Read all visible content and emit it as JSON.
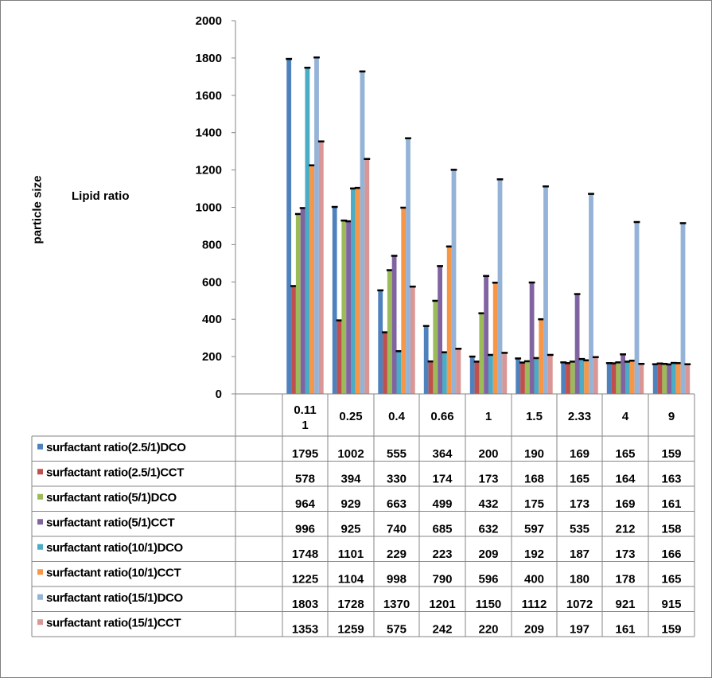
{
  "chart_data": {
    "type": "bar",
    "title": "",
    "xlabel": "Lipid ratio",
    "ylabel": "particle size",
    "ylim": [
      0,
      2000
    ],
    "yticks": [
      0,
      200,
      400,
      600,
      800,
      1000,
      1200,
      1400,
      1600,
      1800,
      2000
    ],
    "categories": [
      "0.11\n1",
      "0.25",
      "0.4",
      "0.66",
      "1",
      "1.5",
      "2.33",
      "4",
      "9"
    ],
    "error_bars": true,
    "legend": "data table below chart",
    "series": [
      {
        "name": "surfactant ratio(2.5/1)DCO",
        "color": "#4f81bd",
        "values": [
          1795,
          1002,
          555,
          364,
          200,
          190,
          169,
          165,
          159
        ]
      },
      {
        "name": "surfactant ratio(2.5/1)CCT",
        "color": "#c0504d",
        "values": [
          578,
          394,
          330,
          174,
          173,
          168,
          165,
          164,
          163
        ]
      },
      {
        "name": "surfactant ratio(5/1)DCO",
        "color": "#9bbb59",
        "values": [
          964,
          929,
          663,
          499,
          432,
          175,
          173,
          169,
          161
        ]
      },
      {
        "name": "surfactant ratio(5/1)CCT",
        "color": "#8064a2",
        "values": [
          996,
          925,
          740,
          685,
          632,
          597,
          535,
          212,
          158
        ]
      },
      {
        "name": "surfactant ratio(10/1)DCO",
        "color": "#4bacc6",
        "values": [
          1748,
          1101,
          229,
          223,
          209,
          192,
          187,
          173,
          166
        ]
      },
      {
        "name": "surfactant ratio(10/1)CCT",
        "color": "#f79646",
        "values": [
          1225,
          1104,
          998,
          790,
          596,
          400,
          180,
          178,
          165
        ]
      },
      {
        "name": "surfactant ratio(15/1)DCO",
        "color": "#95b3d7",
        "values": [
          1803,
          1728,
          1370,
          1201,
          1150,
          1112,
          1072,
          921,
          915
        ]
      },
      {
        "name": "surfactant ratio(15/1)CCT",
        "color": "#d99694",
        "values": [
          1353,
          1259,
          575,
          242,
          220,
          209,
          197,
          161,
          159
        ]
      }
    ]
  }
}
